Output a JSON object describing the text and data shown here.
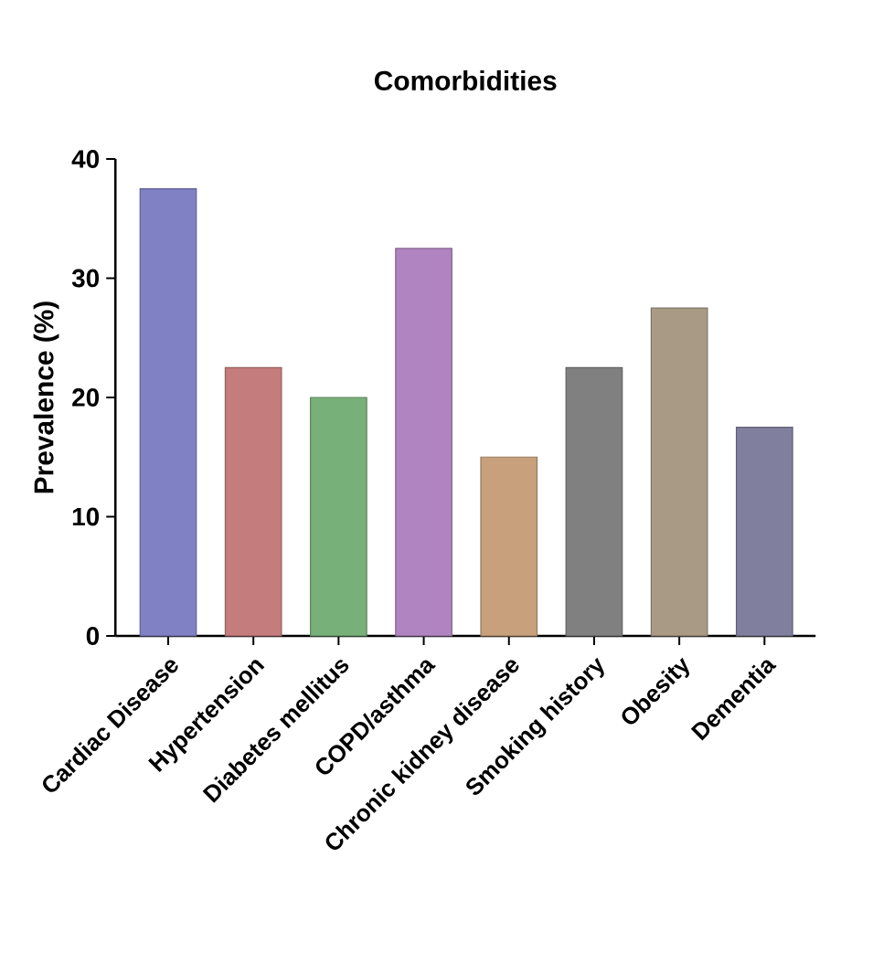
{
  "chart_data": {
    "type": "bar",
    "title": "Comorbidities",
    "ylabel": "Prevalence (%)",
    "categories": [
      "Cardiac Disease",
      "Hypertension",
      "Diabetes mellitus",
      "COPD/asthma",
      "Chronic kidney disease",
      "Smoking history",
      "Obesity",
      "Dementia"
    ],
    "values": [
      37.5,
      22.5,
      20,
      32.5,
      15,
      22.5,
      27.5,
      17.5
    ],
    "colors": [
      "#8080c4",
      "#c47c7c",
      "#78b07a",
      "#b084c0",
      "#c8a07c",
      "#808080",
      "#a89a84",
      "#80809e"
    ],
    "ylim": [
      0,
      40
    ],
    "yticks": [
      0,
      10,
      20,
      30,
      40
    ],
    "grid": false
  }
}
